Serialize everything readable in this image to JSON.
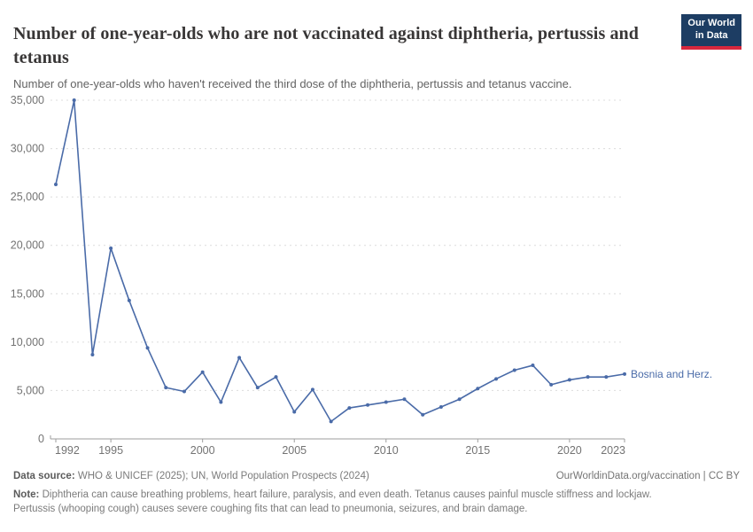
{
  "header": {
    "title": "Number of one-year-olds who are not vaccinated against diphtheria, pertussis and tetanus",
    "subtitle": "Number of one-year-olds who haven't received the third dose of the diphtheria, pertussis and tetanus vaccine.",
    "logo": {
      "line1": "Our World",
      "line2": "in Data"
    }
  },
  "chart_data": {
    "type": "line",
    "title": "Number of one-year-olds who are not vaccinated against diphtheria, pertussis and tetanus",
    "xlabel": "",
    "ylabel": "",
    "x": [
      1992,
      1993,
      1994,
      1995,
      1996,
      1997,
      1998,
      1999,
      2000,
      2001,
      2002,
      2003,
      2004,
      2005,
      2006,
      2007,
      2008,
      2009,
      2010,
      2011,
      2012,
      2013,
      2014,
      2015,
      2016,
      2017,
      2018,
      2019,
      2020,
      2021,
      2022,
      2023
    ],
    "series": [
      {
        "name": "Bosnia and Herz.",
        "values": [
          26300,
          35000,
          8700,
          19700,
          14300,
          9400,
          5300,
          4900,
          6900,
          3800,
          8400,
          5300,
          6400,
          2800,
          5100,
          1800,
          3200,
          3500,
          3800,
          4100,
          2500,
          3300,
          4100,
          5200,
          6200,
          7100,
          7600,
          5600,
          6100,
          6400,
          6400,
          6700
        ]
      }
    ],
    "entity_label": "Bosnia and Herz.",
    "xlim": [
      1992,
      2023
    ],
    "ylim": [
      0,
      35000
    ],
    "yticks": [
      0,
      5000,
      10000,
      15000,
      20000,
      25000,
      30000,
      35000
    ],
    "ytick_labels": [
      "0",
      "5,000",
      "10,000",
      "15,000",
      "20,000",
      "25,000",
      "30,000",
      "35,000"
    ],
    "xticks": [
      1992,
      1995,
      2000,
      2005,
      2010,
      2015,
      2020,
      2023
    ],
    "grid": "horizontal-dashed",
    "legend_position": "end-of-line-label"
  },
  "colors": {
    "line": "#4a6ba8",
    "grid": "#dcdcdc",
    "axis": "#9e9e9e",
    "tick_text": "#737373",
    "title_text": "#383636",
    "logo_bg": "#1d3d63",
    "logo_red": "#d8273d"
  },
  "footer": {
    "source_label": "Data source:",
    "source_text": " WHO & UNICEF (2025); UN, World Population Prospects (2024)",
    "rights": "OurWorldinData.org/vaccination | CC BY",
    "note_label": "Note:",
    "note_text": " Diphtheria can cause breathing problems, heart failure, paralysis, and even death. Tetanus causes painful muscle stiffness and lockjaw. Pertussis (whooping cough) causes severe coughing fits that can lead to pneumonia, seizures, and brain damage."
  }
}
